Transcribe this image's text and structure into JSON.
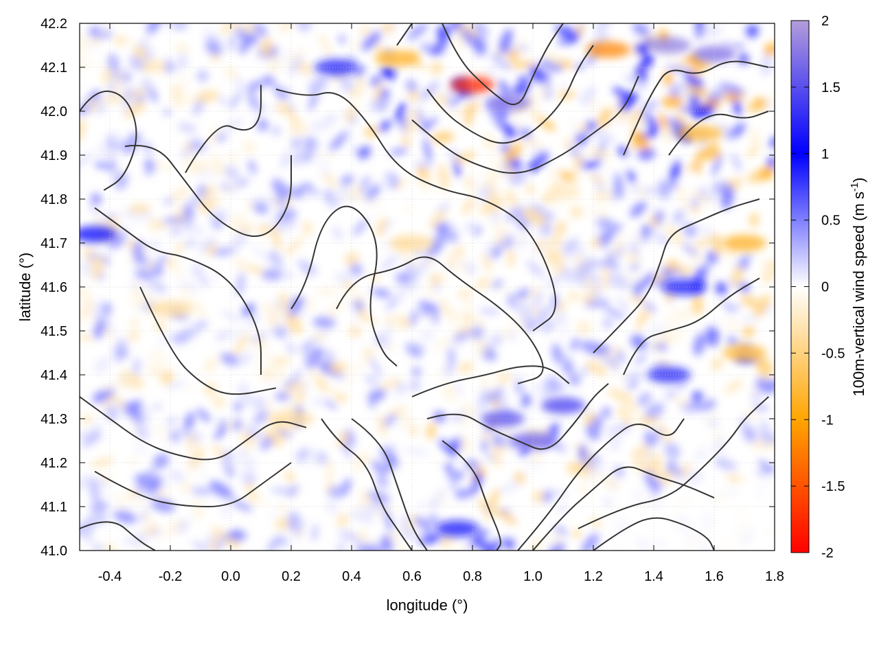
{
  "chart_data": {
    "type": "heatmap",
    "title": "",
    "xlabel": "longitude (°)",
    "ylabel": "latitude (°)",
    "xlim": [
      -0.5,
      1.8
    ],
    "ylim": [
      41.0,
      42.2
    ],
    "x_ticks": [
      "-0.4",
      "-0.2",
      "0.0",
      "0.2",
      "0.4",
      "0.6",
      "0.8",
      "1.0",
      "1.2",
      "1.4",
      "1.6",
      "1.8"
    ],
    "x_tick_values": [
      -0.4,
      -0.2,
      0.0,
      0.2,
      0.4,
      0.6,
      0.8,
      1.0,
      1.2,
      1.4,
      1.6,
      1.8
    ],
    "y_ticks": [
      "41.0",
      "41.1",
      "41.2",
      "41.3",
      "41.4",
      "41.5",
      "41.6",
      "41.7",
      "41.8",
      "41.9",
      "42.0",
      "42.1",
      "42.2"
    ],
    "y_tick_values": [
      41.0,
      41.1,
      41.2,
      41.3,
      41.4,
      41.5,
      41.6,
      41.7,
      41.8,
      41.9,
      42.0,
      42.1,
      42.2
    ],
    "grid": true,
    "colorbar": {
      "label_prefix": "100m-vertical wind speed (m s",
      "label_sup": "-1",
      "label_suffix": ")",
      "range": [
        -2,
        2
      ],
      "ticks": [
        "2",
        "1.5",
        "1",
        "0.5",
        "0",
        "-0.5",
        "-1",
        "-1.5",
        "-2"
      ],
      "tick_values": [
        2,
        1.5,
        1,
        0.5,
        0,
        -0.5,
        -1,
        -1.5,
        -2
      ],
      "colors": [
        {
          "value": -2,
          "color": "#ff0000"
        },
        {
          "value": -1,
          "color": "#ffa500"
        },
        {
          "value": 0,
          "color": "#ffffff"
        },
        {
          "value": 1,
          "color": "#0000ff"
        },
        {
          "value": 2,
          "color": "#b39ddb"
        }
      ]
    },
    "strong_regions": [
      {
        "lon": 0.8,
        "lat": 42.06,
        "value": -1.8
      },
      {
        "lon": 0.92,
        "lat": 42.02,
        "value": 1.7
      },
      {
        "lon": 1.25,
        "lat": 42.14,
        "value": -1.2
      },
      {
        "lon": 1.45,
        "lat": 42.15,
        "value": 1.8
      },
      {
        "lon": 1.6,
        "lat": 42.13,
        "value": 1.7
      },
      {
        "lon": 1.0,
        "lat": 41.25,
        "value": 1.6
      },
      {
        "lon": 0.9,
        "lat": 41.3,
        "value": 1.5
      },
      {
        "lon": 1.1,
        "lat": 41.33,
        "value": 1.4
      },
      {
        "lon": 0.35,
        "lat": 42.1,
        "value": 1.2
      },
      {
        "lon": 0.55,
        "lat": 42.12,
        "value": -0.9
      },
      {
        "lon": 1.55,
        "lat": 41.95,
        "value": -0.8
      },
      {
        "lon": 1.5,
        "lat": 41.6,
        "value": 1.1
      },
      {
        "lon": 1.45,
        "lat": 41.4,
        "value": 1.2
      },
      {
        "lon": 0.75,
        "lat": 41.05,
        "value": 1.1
      },
      {
        "lon": -0.2,
        "lat": 41.55,
        "value": -0.4
      },
      {
        "lon": 0.6,
        "lat": 41.7,
        "value": -0.4
      },
      {
        "lon": 0.2,
        "lat": 41.3,
        "value": -0.4
      },
      {
        "lon": 1.7,
        "lat": 41.7,
        "value": -0.9
      },
      {
        "lon": 1.7,
        "lat": 41.45,
        "value": -0.8
      },
      {
        "lon": -0.45,
        "lat": 41.72,
        "value": 1.0
      }
    ],
    "contours": [
      [
        [
          -0.5,
          42.0
        ],
        [
          -0.45,
          42.05
        ],
        [
          -0.35,
          42.04
        ],
        [
          -0.3,
          41.95
        ],
        [
          -0.35,
          41.85
        ],
        [
          -0.42,
          41.82
        ]
      ],
      [
        [
          -0.35,
          41.92
        ],
        [
          -0.25,
          41.93
        ],
        [
          -0.15,
          41.84
        ],
        [
          -0.05,
          41.75
        ],
        [
          0.1,
          41.7
        ],
        [
          0.2,
          41.78
        ],
        [
          0.2,
          41.9
        ]
      ],
      [
        [
          -0.15,
          41.86
        ],
        [
          -0.05,
          41.98
        ],
        [
          0.05,
          41.95
        ],
        [
          0.1,
          41.98
        ],
        [
          0.1,
          42.06
        ]
      ],
      [
        [
          0.15,
          42.05
        ],
        [
          0.25,
          42.03
        ],
        [
          0.35,
          42.05
        ],
        [
          0.45,
          41.98
        ],
        [
          0.55,
          41.87
        ],
        [
          0.7,
          41.82
        ],
        [
          0.85,
          41.8
        ],
        [
          1.0,
          41.73
        ],
        [
          1.1,
          41.55
        ],
        [
          1.0,
          41.5
        ]
      ],
      [
        [
          -0.45,
          41.78
        ],
        [
          -0.35,
          41.73
        ],
        [
          -0.25,
          41.68
        ],
        [
          -0.15,
          41.67
        ],
        [
          0.0,
          41.62
        ],
        [
          0.1,
          41.5
        ],
        [
          0.1,
          41.4
        ]
      ],
      [
        [
          -0.3,
          41.6
        ],
        [
          -0.2,
          41.45
        ],
        [
          -0.1,
          41.38
        ],
        [
          0.0,
          41.35
        ],
        [
          0.15,
          41.37
        ]
      ],
      [
        [
          0.2,
          41.55
        ],
        [
          0.25,
          41.6
        ],
        [
          0.3,
          41.75
        ],
        [
          0.4,
          41.8
        ],
        [
          0.5,
          41.7
        ],
        [
          0.45,
          41.55
        ],
        [
          0.5,
          41.45
        ],
        [
          0.55,
          41.42
        ]
      ],
      [
        [
          0.35,
          41.55
        ],
        [
          0.4,
          41.62
        ],
        [
          0.55,
          41.64
        ],
        [
          0.65,
          41.68
        ],
        [
          0.75,
          41.62
        ],
        [
          0.9,
          41.55
        ],
        [
          1.0,
          41.48
        ],
        [
          1.05,
          41.4
        ],
        [
          0.95,
          41.38
        ]
      ],
      [
        [
          0.6,
          41.35
        ],
        [
          0.7,
          41.38
        ],
        [
          0.85,
          41.4
        ],
        [
          0.95,
          41.42
        ],
        [
          1.05,
          41.42
        ],
        [
          1.12,
          41.38
        ]
      ],
      [
        [
          -0.5,
          41.35
        ],
        [
          -0.4,
          41.3
        ],
        [
          -0.3,
          41.25
        ],
        [
          -0.2,
          41.22
        ],
        [
          -0.05,
          41.2
        ],
        [
          0.05,
          41.25
        ],
        [
          0.15,
          41.3
        ],
        [
          0.25,
          41.28
        ]
      ],
      [
        [
          -0.45,
          41.18
        ],
        [
          -0.3,
          41.12
        ],
        [
          -0.15,
          41.1
        ],
        [
          0.0,
          41.1
        ],
        [
          0.1,
          41.15
        ],
        [
          0.2,
          41.2
        ]
      ],
      [
        [
          -0.5,
          41.05
        ],
        [
          -0.4,
          41.08
        ],
        [
          -0.3,
          41.02
        ],
        [
          -0.25,
          41.0
        ]
      ],
      [
        [
          0.3,
          41.3
        ],
        [
          0.35,
          41.25
        ],
        [
          0.45,
          41.2
        ],
        [
          0.5,
          41.1
        ],
        [
          0.55,
          41.05
        ],
        [
          0.6,
          41.0
        ]
      ],
      [
        [
          0.4,
          41.3
        ],
        [
          0.5,
          41.25
        ],
        [
          0.55,
          41.15
        ],
        [
          0.6,
          41.05
        ],
        [
          0.65,
          41.0
        ]
      ],
      [
        [
          0.7,
          41.25
        ],
        [
          0.8,
          41.2
        ],
        [
          0.85,
          41.1
        ],
        [
          0.9,
          41.02
        ],
        [
          0.88,
          41.0
        ]
      ],
      [
        [
          0.65,
          41.3
        ],
        [
          0.75,
          41.32
        ],
        [
          0.85,
          41.28
        ],
        [
          0.95,
          41.25
        ],
        [
          1.05,
          41.22
        ],
        [
          1.15,
          41.3
        ],
        [
          1.2,
          41.35
        ],
        [
          1.25,
          41.38
        ]
      ],
      [
        [
          0.95,
          41.0
        ],
        [
          1.05,
          41.08
        ],
        [
          1.15,
          41.18
        ],
        [
          1.25,
          41.25
        ],
        [
          1.35,
          41.3
        ],
        [
          1.45,
          41.25
        ],
        [
          1.5,
          41.3
        ]
      ],
      [
        [
          1.0,
          41.0
        ],
        [
          1.1,
          41.08
        ],
        [
          1.2,
          41.14
        ],
        [
          1.3,
          41.2
        ],
        [
          1.4,
          41.17
        ],
        [
          1.5,
          41.15
        ],
        [
          1.6,
          41.12
        ]
      ],
      [
        [
          1.15,
          41.05
        ],
        [
          1.3,
          41.1
        ],
        [
          1.45,
          41.12
        ],
        [
          1.55,
          41.18
        ],
        [
          1.65,
          41.25
        ],
        [
          1.7,
          41.3
        ],
        [
          1.78,
          41.35
        ]
      ],
      [
        [
          1.2,
          41.0
        ],
        [
          1.3,
          41.05
        ],
        [
          1.4,
          41.08
        ],
        [
          1.5,
          41.06
        ],
        [
          1.58,
          41.03
        ],
        [
          1.6,
          41.0
        ]
      ],
      [
        [
          1.2,
          41.45
        ],
        [
          1.3,
          41.52
        ],
        [
          1.38,
          41.58
        ],
        [
          1.42,
          41.65
        ],
        [
          1.45,
          41.72
        ],
        [
          1.55,
          41.75
        ],
        [
          1.65,
          41.78
        ],
        [
          1.75,
          41.8
        ]
      ],
      [
        [
          1.3,
          41.4
        ],
        [
          1.35,
          41.48
        ],
        [
          1.45,
          41.5
        ],
        [
          1.55,
          41.52
        ],
        [
          1.65,
          41.58
        ],
        [
          1.75,
          41.62
        ]
      ],
      [
        [
          1.45,
          41.9
        ],
        [
          1.5,
          41.95
        ],
        [
          1.6,
          42.0
        ],
        [
          1.7,
          41.98
        ],
        [
          1.78,
          42.0
        ]
      ],
      [
        [
          1.3,
          41.9
        ],
        [
          1.35,
          41.98
        ],
        [
          1.4,
          42.05
        ],
        [
          1.45,
          42.1
        ],
        [
          1.55,
          42.08
        ],
        [
          1.65,
          42.12
        ],
        [
          1.78,
          42.1
        ]
      ],
      [
        [
          0.55,
          42.15
        ],
        [
          0.6,
          42.2
        ]
      ],
      [
        [
          0.7,
          42.2
        ],
        [
          0.75,
          42.12
        ],
        [
          0.85,
          42.05
        ],
        [
          0.95,
          42.0
        ],
        [
          1.0,
          42.08
        ],
        [
          1.05,
          42.15
        ],
        [
          1.1,
          42.2
        ]
      ],
      [
        [
          0.65,
          42.05
        ],
        [
          0.7,
          42.0
        ],
        [
          0.8,
          41.95
        ],
        [
          0.9,
          41.92
        ],
        [
          1.0,
          41.95
        ],
        [
          1.1,
          42.02
        ],
        [
          1.15,
          42.1
        ],
        [
          1.2,
          42.15
        ]
      ],
      [
        [
          0.6,
          41.98
        ],
        [
          0.7,
          41.92
        ],
        [
          0.8,
          41.88
        ],
        [
          0.95,
          41.85
        ],
        [
          1.1,
          41.9
        ],
        [
          1.2,
          41.95
        ],
        [
          1.3,
          42.0
        ],
        [
          1.35,
          42.08
        ]
      ]
    ]
  }
}
